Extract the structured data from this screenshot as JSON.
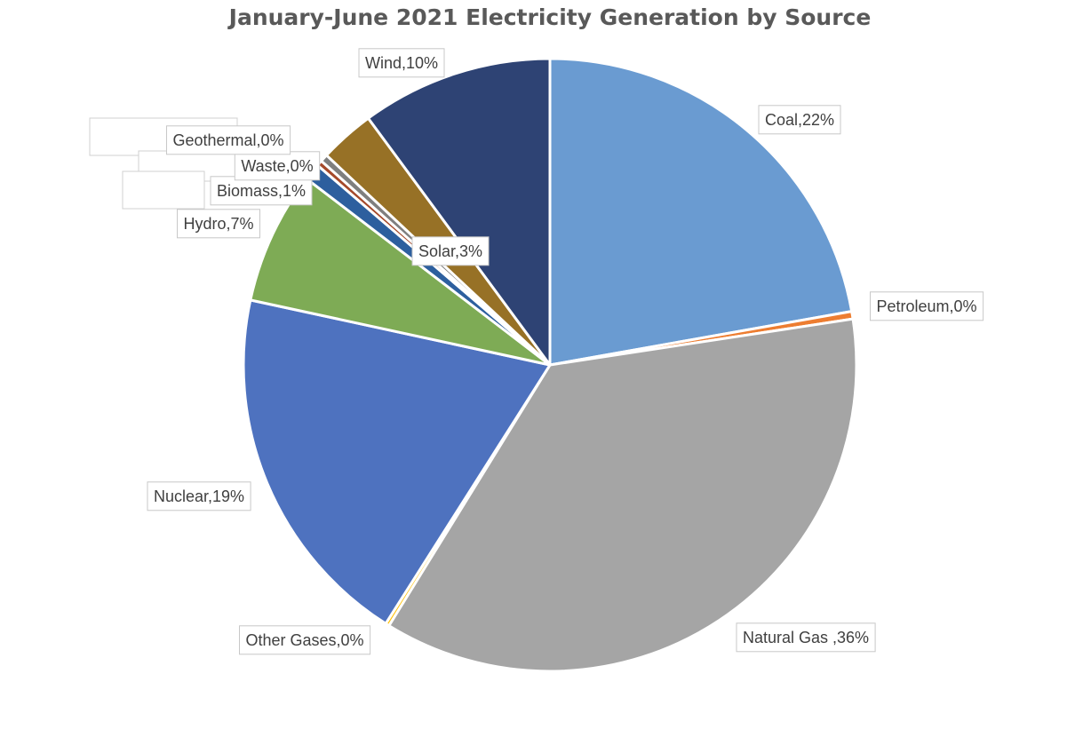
{
  "chart_data": {
    "type": "pie",
    "title": "January-June 2021 Electricity Generation by Source",
    "slices": [
      {
        "name": "Coal",
        "value": 22.2,
        "label": "Coal,22%",
        "color": "#6a9bd1"
      },
      {
        "name": "Petroleum",
        "value": 0.4,
        "label": "Petroleum,0%",
        "color": "#ed7d31"
      },
      {
        "name": "Natural Gas ",
        "value": 36.2,
        "label": "Natural Gas ,36%",
        "color": "#a5a5a5"
      },
      {
        "name": "Other Gases",
        "value": 0.2,
        "label": "Other Gases,0%",
        "color": "#ffc000"
      },
      {
        "name": "Nuclear",
        "value": 19.4,
        "label": "Nuclear,19%",
        "color": "#4e72bf"
      },
      {
        "name": "Hydro",
        "value": 7.0,
        "label": "Hydro,7%",
        "color": "#7eab55"
      },
      {
        "name": "Biomass",
        "value": 0.9,
        "label": "Biomass,1%",
        "color": "#2d5f9e"
      },
      {
        "name": "Waste",
        "value": 0.3,
        "label": "Waste,0%",
        "color": "#a5492a"
      },
      {
        "name": "Geothermal",
        "value": 0.4,
        "label": "Geothermal,0%",
        "color": "#7f7f7f"
      },
      {
        "name": "Solar",
        "value": 2.9,
        "label": "Solar,3%",
        "color": "#977126"
      },
      {
        "name": "Wind",
        "value": 10.1,
        "label": "Wind,10%",
        "color": "#2e4374"
      }
    ],
    "legend": "none"
  }
}
